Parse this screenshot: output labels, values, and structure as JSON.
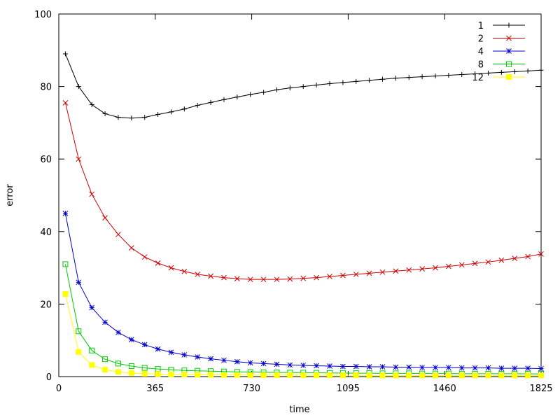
{
  "chart_data": {
    "type": "line",
    "title": "",
    "xlabel": "time",
    "ylabel": "error",
    "xlim": [
      0,
      1825
    ],
    "ylim": [
      0,
      100
    ],
    "x_ticks": [
      0,
      365,
      730,
      1095,
      1460,
      1825
    ],
    "y_ticks": [
      0,
      20,
      40,
      60,
      80,
      100
    ],
    "grid": false,
    "legend_position": "top-right",
    "x": [
      25,
      75,
      125,
      175,
      225,
      275,
      325,
      375,
      425,
      475,
      525,
      575,
      625,
      675,
      725,
      775,
      825,
      875,
      925,
      975,
      1025,
      1075,
      1125,
      1175,
      1225,
      1275,
      1325,
      1375,
      1425,
      1475,
      1525,
      1575,
      1625,
      1675,
      1725,
      1775,
      1825
    ],
    "series": [
      {
        "name": "1",
        "color": "#000000",
        "marker": "plus",
        "values": [
          89,
          80,
          75,
          72.5,
          71.5,
          71.3,
          71.5,
          72.3,
          73.0,
          73.8,
          74.8,
          75.6,
          76.4,
          77.1,
          77.8,
          78.4,
          79.1,
          79.6,
          80.0,
          80.4,
          80.8,
          81.1,
          81.4,
          81.7,
          82.0,
          82.3,
          82.5,
          82.7,
          82.9,
          83.1,
          83.3,
          83.5,
          83.7,
          83.9,
          84.1,
          84.3,
          84.5
        ]
      },
      {
        "name": "2",
        "color": "#cc0000",
        "marker": "x",
        "values": [
          75.5,
          60,
          50.3,
          43.8,
          39.2,
          35.5,
          33.0,
          31.3,
          30.0,
          29.0,
          28.2,
          27.7,
          27.3,
          27.0,
          26.8,
          26.8,
          26.8,
          26.9,
          27.1,
          27.3,
          27.6,
          27.9,
          28.2,
          28.5,
          28.8,
          29.1,
          29.4,
          29.7,
          30.0,
          30.4,
          30.8,
          31.2,
          31.6,
          32.1,
          32.6,
          33.1,
          33.8
        ]
      },
      {
        "name": "4",
        "color": "#0000cc",
        "marker": "star",
        "values": [
          45,
          26,
          19,
          15,
          12.2,
          10.2,
          8.8,
          7.6,
          6.7,
          6.0,
          5.4,
          4.9,
          4.5,
          4.1,
          3.8,
          3.6,
          3.4,
          3.2,
          3.1,
          3.0,
          2.9,
          2.8,
          2.8,
          2.7,
          2.7,
          2.6,
          2.6,
          2.5,
          2.5,
          2.5,
          2.4,
          2.4,
          2.4,
          2.3,
          2.3,
          2.3,
          2.2
        ]
      },
      {
        "name": "8",
        "color": "#00cc00",
        "marker": "square",
        "values": [
          31,
          12.5,
          7.2,
          4.8,
          3.6,
          2.9,
          2.4,
          2.1,
          1.9,
          1.7,
          1.6,
          1.5,
          1.4,
          1.3,
          1.25,
          1.2,
          1.15,
          1.1,
          1.1,
          1.05,
          1.0,
          1.0,
          0.95,
          0.95,
          0.9,
          0.9,
          0.9,
          0.85,
          0.85,
          0.85,
          0.8,
          0.8,
          0.8,
          0.8,
          0.8,
          0.75,
          0.75
        ]
      },
      {
        "name": "12",
        "color": "#ffff00",
        "marker": "filled-square",
        "values": [
          22.8,
          6.8,
          3.2,
          1.9,
          1.3,
          1.0,
          0.8,
          0.7,
          0.6,
          0.55,
          0.5,
          0.5,
          0.45,
          0.45,
          0.4,
          0.4,
          0.4,
          0.4,
          0.35,
          0.35,
          0.35,
          0.35,
          0.35,
          0.3,
          0.3,
          0.3,
          0.3,
          0.3,
          0.3,
          0.3,
          0.3,
          0.3,
          0.3,
          0.3,
          0.3,
          0.3,
          0.3
        ]
      }
    ]
  }
}
